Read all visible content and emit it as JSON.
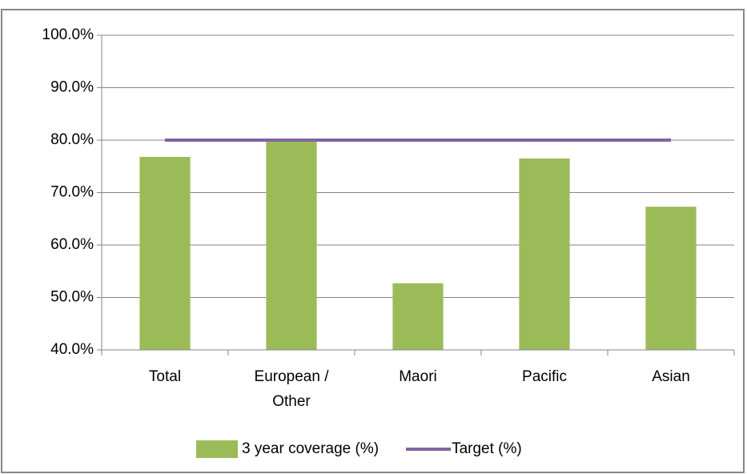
{
  "chart_data": {
    "type": "bar",
    "categories": [
      "Total",
      "European / Other",
      "Maori",
      "Pacific",
      "Asian"
    ],
    "series": [
      {
        "name": "3 year coverage (%)",
        "color": "#9bbb59",
        "values": [
          76.8,
          79.7,
          52.7,
          76.5,
          67.3
        ]
      },
      {
        "name": "Target (%)",
        "color": "#8064a2",
        "type": "line",
        "values": [
          80,
          80,
          80,
          80,
          80
        ]
      }
    ],
    "ylim": [
      40,
      100
    ],
    "yticks": [
      {
        "value": 40,
        "label": "40.0%"
      },
      {
        "value": 50,
        "label": "50.0%"
      },
      {
        "value": 60,
        "label": "60.0%"
      },
      {
        "value": 70,
        "label": "70.0%"
      },
      {
        "value": 80,
        "label": "80.0%"
      },
      {
        "value": 90,
        "label": "90.0%"
      },
      {
        "value": 100,
        "label": "100.0%"
      }
    ],
    "grid": true,
    "legend": "bottom"
  }
}
